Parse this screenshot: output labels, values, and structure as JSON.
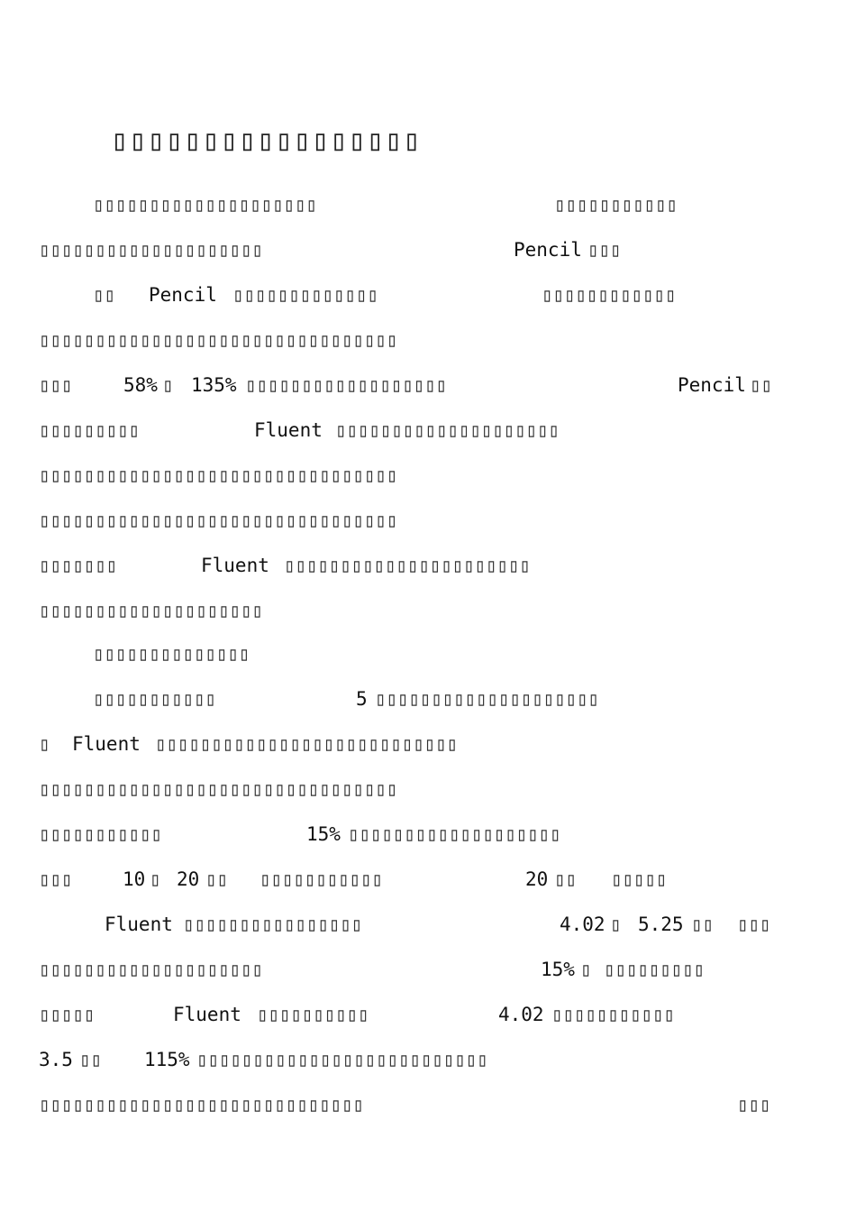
{
  "title": "▯▯▯▯▯▯▯▯▯▯▯▯▯▯▯▯▯",
  "lines": [
    [
      "▯▯▯▯▯▯▯▯▯▯▯▯▯▯▯▯▯▯▯▯",
      "▯▯▯▯▯▯▯▯▯▯▯"
    ],
    [
      "▯▯▯▯▯▯▯▯▯▯▯▯▯▯▯▯▯▯▯▯",
      "Pencil",
      "▯▯▯"
    ],
    [
      "▯▯",
      "Pencil",
      "▯▯▯▯▯▯▯▯▯▯▯▯▯",
      "▯▯▯▯▯▯▯▯▯▯▯▯"
    ],
    [
      "▯▯▯▯▯▯▯▯▯▯▯▯▯▯▯▯▯▯▯▯▯▯▯▯▯▯▯▯▯▯▯▯"
    ],
    [
      "▯▯▯",
      "58%",
      "▯",
      "135%",
      "▯▯▯▯▯▯▯▯▯▯▯▯▯▯▯▯▯▯",
      "Pencil",
      "▯▯"
    ],
    [
      "▯▯▯▯▯▯▯▯▯",
      "Fluent",
      "▯▯▯▯▯▯▯▯▯▯▯▯▯▯▯▯▯▯▯▯"
    ],
    [
      "▯▯▯▯▯▯▯▯▯▯▯▯▯▯▯▯▯▯▯▯▯▯▯▯▯▯▯▯▯▯▯▯"
    ],
    [
      "▯▯▯▯▯▯▯▯▯▯▯▯▯▯▯▯▯▯▯▯▯▯▯▯▯▯▯▯▯▯▯▯"
    ],
    [
      "▯▯▯▯▯▯▯",
      "Fluent",
      "▯▯▯▯▯▯▯▯▯▯▯▯▯▯▯▯▯▯▯▯▯▯"
    ],
    [
      "▯▯▯▯▯▯▯▯▯▯▯▯▯▯▯▯▯▯▯▯"
    ],
    [
      "▯▯▯▯▯▯▯▯▯▯▯▯▯▯"
    ],
    [
      "▯▯▯▯▯▯▯▯▯▯▯",
      "5",
      "▯▯▯▯▯▯▯▯▯▯▯▯▯▯▯▯▯▯▯▯"
    ],
    [
      "▯",
      "Fluent",
      "▯▯▯▯▯▯▯▯▯▯▯▯▯▯▯▯▯▯▯▯▯▯▯▯▯▯▯"
    ],
    [
      "▯▯▯▯▯▯▯▯▯▯▯▯▯▯▯▯▯▯▯▯▯▯▯▯▯▯▯▯▯▯▯▯"
    ],
    [
      "▯▯▯▯▯▯▯▯▯▯▯",
      "15%",
      "▯▯▯▯▯▯▯▯▯▯▯▯▯▯▯▯▯▯▯"
    ],
    [
      "▯▯▯",
      "10",
      "▯",
      "20",
      "▯▯",
      "▯▯▯▯▯▯▯▯▯▯▯",
      "20",
      "▯▯",
      "▯▯▯▯▯"
    ],
    [
      "Fluent",
      "▯▯▯▯▯▯▯▯▯▯▯▯▯▯▯▯",
      "4.02",
      "▯",
      "5.25",
      "▯▯",
      "▯▯▯"
    ],
    [
      "▯▯▯▯▯▯▯▯▯▯▯▯▯▯▯▯▯▯▯▯",
      "15%",
      "▯",
      "▯▯▯▯▯▯▯▯▯"
    ],
    [
      "▯▯▯▯▯",
      "Fluent",
      "▯▯▯▯▯▯▯▯▯▯",
      "4.02",
      "▯▯▯▯▯▯▯▯▯▯▯"
    ],
    [
      "3.5",
      "▯▯",
      "115%",
      "▯▯▯▯▯▯▯▯▯▯▯▯▯▯▯▯▯▯▯▯▯▯▯▯▯▯"
    ],
    [
      "▯▯▯▯▯▯▯▯▯▯▯▯▯▯▯▯▯▯▯▯▯▯▯▯▯▯▯▯▯",
      "▯▯▯"
    ]
  ]
}
